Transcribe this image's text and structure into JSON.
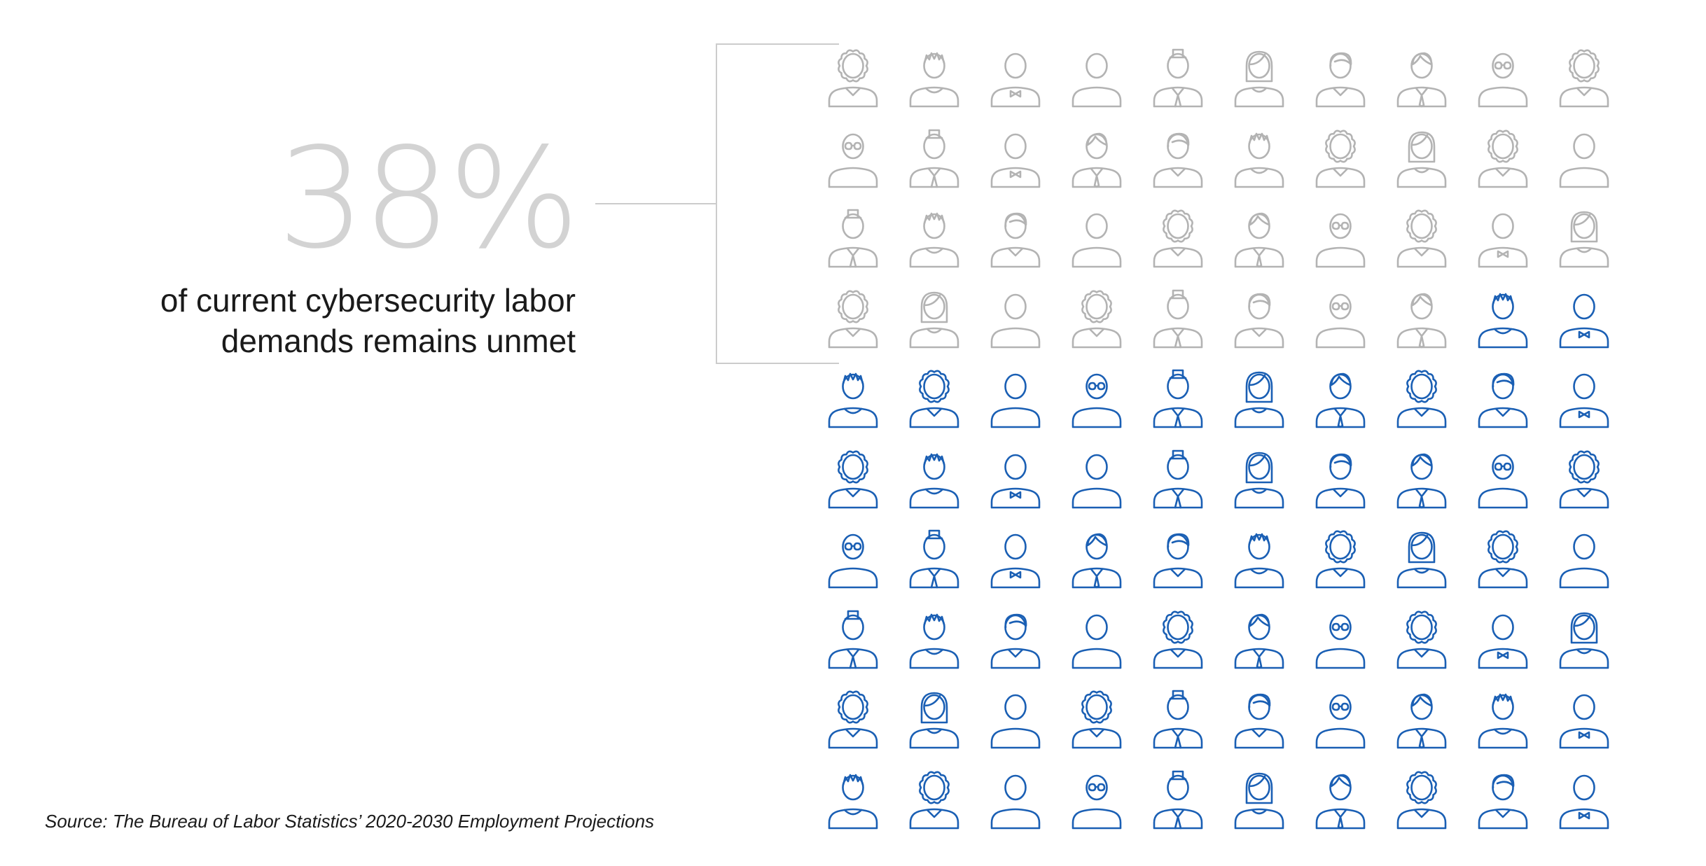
{
  "stat": {
    "value": "38%",
    "caption_line1": "of current cybersecurity labor",
    "caption_line2": "demands remains unmet"
  },
  "source": "Source: The Bureau of Labor Statistics’ 2020-2030 Employment Projections",
  "colors": {
    "unmet": "#b3b3b3",
    "met": "#1a5fb4",
    "bracket": "#cccccc",
    "percent_text": "#d3d3d3"
  },
  "grid": {
    "rows": 10,
    "columns": 10,
    "total": 100,
    "unmet_count": 38,
    "icon_name": "person-icon",
    "variants": [
      [
        "curly",
        "spiky",
        "bowtie",
        "plain",
        "tophat",
        "bob",
        "swoop",
        "tie",
        "glasses",
        "curly"
      ],
      [
        "glasses",
        "tophat",
        "bowtie",
        "tie",
        "swoop",
        "spiky",
        "curly",
        "bob",
        "curly",
        "plain"
      ],
      [
        "tophat",
        "spiky",
        "swoop",
        "plain",
        "curly",
        "tie",
        "glasses",
        "curly",
        "bowtie",
        "bob"
      ],
      [
        "curly",
        "bob",
        "plain",
        "curly",
        "tophat",
        "swoop",
        "glasses",
        "tie",
        "spiky",
        "bowtie"
      ],
      [
        "spiky",
        "curly",
        "plain",
        "glasses",
        "tophat",
        "bob",
        "tie",
        "curly",
        "swoop",
        "bowtie"
      ],
      [
        "curly",
        "spiky",
        "bowtie",
        "plain",
        "tophat",
        "bob",
        "swoop",
        "tie",
        "glasses",
        "curly"
      ],
      [
        "glasses",
        "tophat",
        "bowtie",
        "tie",
        "swoop",
        "spiky",
        "curly",
        "bob",
        "curly",
        "plain"
      ],
      [
        "tophat",
        "spiky",
        "swoop",
        "plain",
        "curly",
        "tie",
        "glasses",
        "curly",
        "bowtie",
        "bob"
      ],
      [
        "curly",
        "bob",
        "plain",
        "curly",
        "tophat",
        "swoop",
        "glasses",
        "tie",
        "spiky",
        "bowtie"
      ],
      [
        "spiky",
        "curly",
        "plain",
        "glasses",
        "tophat",
        "bob",
        "tie",
        "curly",
        "swoop",
        "bowtie"
      ]
    ]
  }
}
